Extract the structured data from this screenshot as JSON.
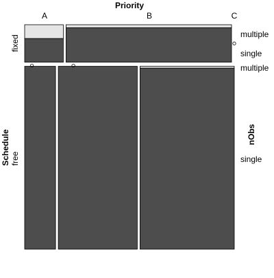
{
  "chart_data": {
    "type": "mosaic",
    "title": "",
    "x_variable": "Priority",
    "x_levels": [
      "A",
      "B",
      "C"
    ],
    "row_variable": "Schedule",
    "row_levels": [
      "fixed",
      "free"
    ],
    "fill_variable": "nObs",
    "fill_levels": [
      "multiple",
      "single"
    ],
    "cells": [
      {
        "priority": "A",
        "schedule": "fixed",
        "width": 1.0,
        "multiple": 0.37,
        "single": 0.63
      },
      {
        "priority": "B",
        "schedule": "fixed",
        "width": 4.28,
        "multiple": 0.08,
        "single": 0.92
      },
      {
        "priority": "C",
        "schedule": "fixed",
        "width": 0.0,
        "multiple": 0.0,
        "single": 0.0
      },
      {
        "priority": "A",
        "schedule": "free",
        "width": 0.79,
        "multiple": 0.0,
        "single": 1.0
      },
      {
        "priority": "B",
        "schedule": "free",
        "width": 2.02,
        "multiple": 0.0,
        "single": 1.0
      },
      {
        "priority": "C",
        "schedule": "free",
        "width": 2.41,
        "multiple": 0.01,
        "single": 0.99
      }
    ],
    "row_heights": {
      "fixed": 0.17,
      "free": 0.83
    },
    "colors": {
      "multiple": "#e5e5e5",
      "single": "#4d4d4d",
      "border": "#000000"
    }
  }
}
